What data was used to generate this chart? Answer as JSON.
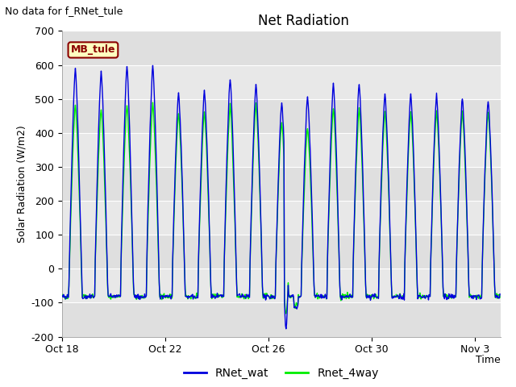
{
  "title": "Net Radiation",
  "no_data_label": "No data for f_RNet_tule",
  "mb_tule_label": "MB_tule",
  "ylabel": "Solar Radiation (W/m2)",
  "xlabel": "Time",
  "ylim": [
    -200,
    700
  ],
  "xtick_labels": [
    "Oct 18",
    "Oct 22",
    "Oct 26",
    "Oct 30",
    "Nov 3"
  ],
  "line1_color": "#0000dd",
  "line2_color": "#00ee00",
  "legend_labels": [
    "RNet_wat",
    "Rnet_4way"
  ],
  "fig_bg_color": "#ffffff",
  "plot_bg_color": "#e8e8e8",
  "grid_color": "#ffffff",
  "band_color1": "#e8e8e8",
  "band_color2": "#d4d4d4",
  "peaks_blue": [
    590,
    580,
    595,
    600,
    520,
    525,
    560,
    540,
    490,
    505,
    545,
    545,
    515,
    515,
    510,
    505,
    495
  ],
  "peaks_green": [
    500,
    490,
    500,
    505,
    475,
    480,
    500,
    505,
    450,
    430,
    490,
    490,
    480,
    480,
    480,
    480,
    480
  ],
  "night_base": -82,
  "anomaly_blue_min": -175,
  "anomaly_green_min": -130
}
